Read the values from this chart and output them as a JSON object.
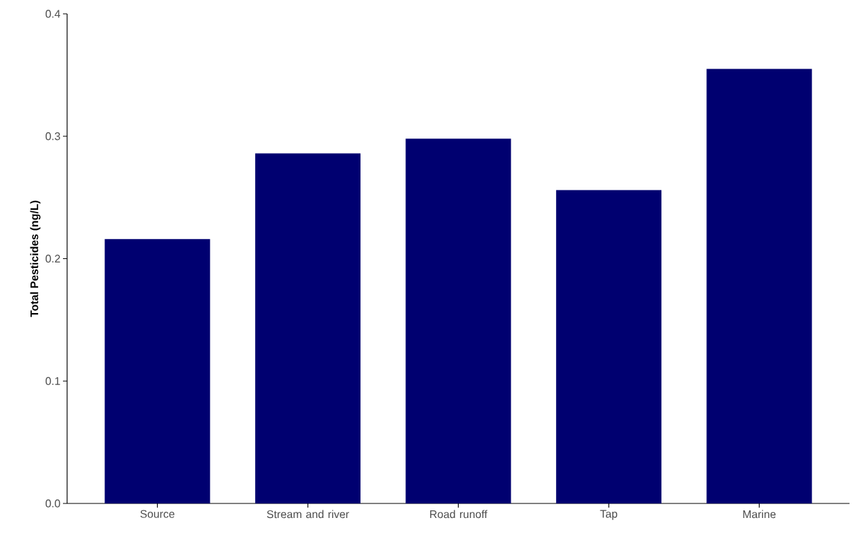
{
  "chart_data": {
    "type": "bar",
    "ylabel": "Total Pesticides (ng/L)",
    "categories": [
      "Source",
      "Stream and river",
      "Road runoff",
      "Tap",
      "Marine"
    ],
    "values": [
      0.216,
      0.286,
      0.298,
      0.256,
      0.355
    ],
    "color": "#000070",
    "ylim": [
      0,
      0.4
    ],
    "yticks": [
      {
        "value": 0,
        "label": "0.0"
      },
      {
        "value": 0.1,
        "label": "0.1"
      },
      {
        "value": 0.2,
        "label": "0.2"
      },
      {
        "value": 0.3,
        "label": "0.3"
      },
      {
        "value": 0.4,
        "label": "0.4"
      }
    ]
  }
}
